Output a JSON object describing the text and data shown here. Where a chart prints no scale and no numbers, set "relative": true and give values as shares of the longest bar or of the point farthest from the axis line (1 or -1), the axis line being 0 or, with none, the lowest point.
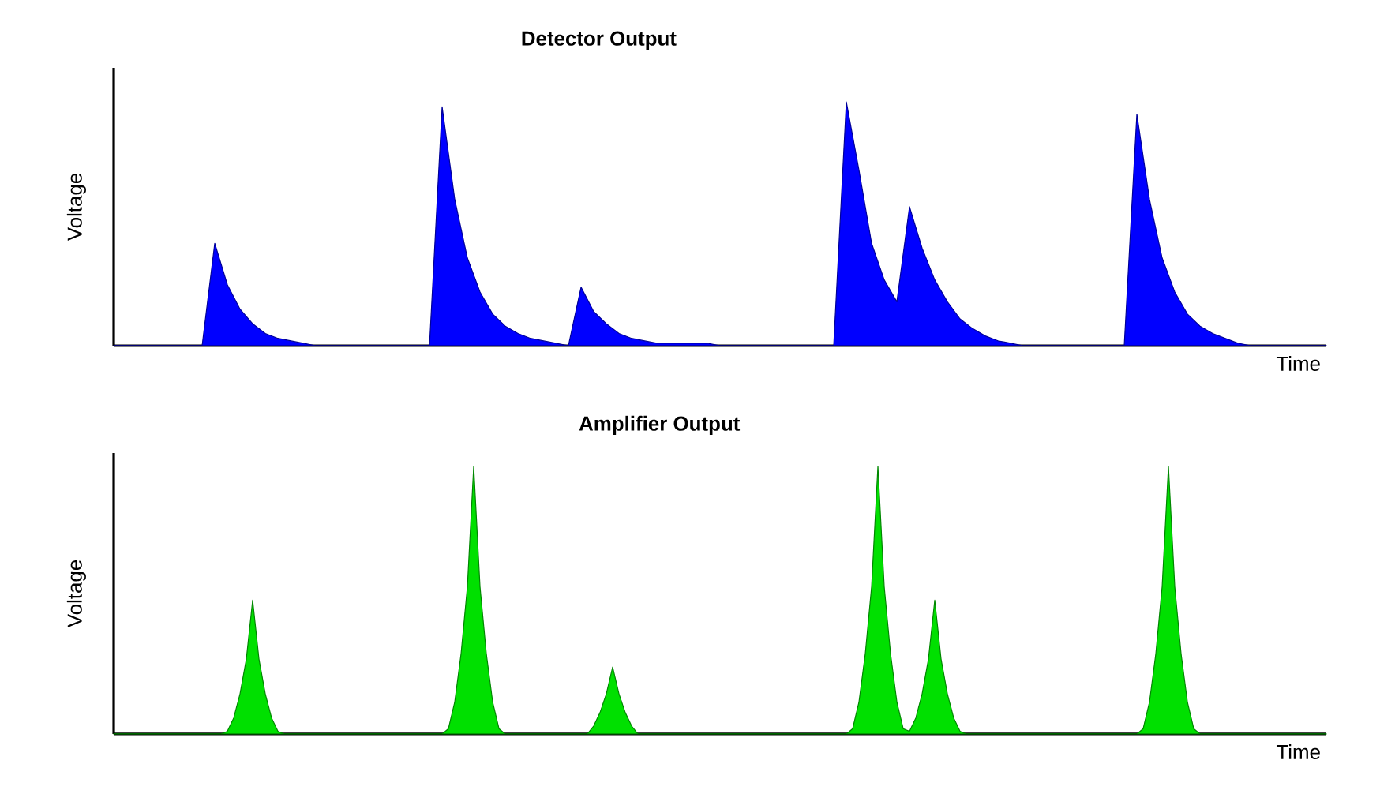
{
  "chart_data": [
    {
      "type": "area",
      "title": "Detector Output",
      "xlabel": "Time",
      "ylabel": "Voltage",
      "relative": true,
      "color": "#0000ff",
      "categories": [
        null,
        null,
        null,
        null,
        null,
        null,
        null,
        null,
        null,
        null,
        null,
        null,
        null,
        null,
        null,
        null,
        null,
        null,
        null,
        null,
        null,
        null,
        null,
        null,
        null,
        null,
        null,
        null,
        null,
        null,
        null,
        null,
        null,
        null,
        null,
        null,
        null,
        null,
        null,
        null,
        null,
        null,
        null,
        null,
        null,
        null,
        null,
        null,
        null,
        null,
        null,
        null,
        null,
        null,
        null,
        null,
        null,
        null,
        null,
        null,
        null,
        null,
        null,
        null,
        null,
        null,
        null,
        null,
        null,
        null,
        null,
        null,
        null,
        null,
        null,
        null,
        null,
        null,
        null,
        null,
        null,
        null,
        null,
        null,
        null,
        null,
        null,
        null,
        null,
        null,
        null,
        null,
        null,
        null,
        null,
        null,
        null
      ],
      "values": [
        0,
        0,
        0,
        0,
        0,
        0,
        0,
        0,
        0.42,
        0.25,
        0.15,
        0.09,
        0.05,
        0.03,
        0.02,
        0.01,
        0,
        0,
        0,
        0,
        0,
        0,
        0,
        0,
        0,
        0,
        0.98,
        0.6,
        0.36,
        0.22,
        0.13,
        0.08,
        0.05,
        0.03,
        0.02,
        0.01,
        0,
        0.24,
        0.14,
        0.09,
        0.05,
        0.03,
        0.02,
        0.01,
        0.01,
        0.01,
        0.01,
        0.01,
        0,
        0,
        0,
        0,
        0,
        0,
        0,
        0,
        0,
        0,
        1,
        0.72,
        0.42,
        0.27,
        0.18,
        0.57,
        0.4,
        0.27,
        0.18,
        0.11,
        0.07,
        0.04,
        0.02,
        0.01,
        0,
        0,
        0,
        0,
        0,
        0,
        0,
        0,
        0,
        0.95,
        0.6,
        0.36,
        0.22,
        0.13,
        0.08,
        0.05,
        0.03,
        0.01,
        0,
        0,
        0,
        0,
        0,
        0,
        0
      ]
    },
    {
      "type": "area",
      "title": "Amplifier Output",
      "xlabel": "Time",
      "ylabel": "Voltage",
      "relative": true,
      "color": "#00e000",
      "categories": [
        null,
        null,
        null,
        null,
        null,
        null,
        null,
        null,
        null,
        null,
        null,
        null,
        null,
        null,
        null,
        null,
        null,
        null,
        null,
        null,
        null,
        null,
        null,
        null,
        null,
        null,
        null,
        null,
        null,
        null,
        null,
        null,
        null,
        null,
        null,
        null,
        null,
        null,
        null,
        null,
        null,
        null,
        null,
        null,
        null,
        null,
        null,
        null,
        null,
        null,
        null,
        null,
        null,
        null,
        null,
        null,
        null,
        null,
        null,
        null,
        null,
        null,
        null,
        null,
        null,
        null,
        null,
        null,
        null,
        null,
        null,
        null,
        null,
        null,
        null,
        null,
        null,
        null,
        null,
        null,
        null,
        null,
        null,
        null,
        null,
        null,
        null,
        null,
        null,
        null,
        null,
        null,
        null,
        null,
        null,
        null,
        null,
        null,
        null,
        null,
        null,
        null,
        null,
        null,
        null,
        null,
        null,
        null,
        null,
        null,
        null,
        null,
        null,
        null,
        null,
        null,
        null,
        null,
        null,
        null,
        null,
        null,
        null,
        null,
        null,
        null,
        null,
        null,
        null,
        null,
        null,
        null,
        null,
        null,
        null,
        null,
        null,
        null,
        null,
        null,
        null,
        null,
        null,
        null,
        null,
        null,
        null,
        null,
        null,
        null,
        null,
        null,
        null,
        null,
        null,
        null,
        null,
        null,
        null,
        null,
        null,
        null,
        null,
        null,
        null,
        null,
        null,
        null,
        null,
        null,
        null,
        null,
        null,
        null,
        null,
        null,
        null,
        null,
        null,
        null,
        null,
        null,
        null,
        null,
        null,
        null,
        null,
        null,
        null,
        null,
        null,
        null,
        null
      ],
      "values": [
        0,
        0,
        0,
        0,
        0,
        0,
        0,
        0,
        0,
        0,
        0,
        0,
        0,
        0,
        0,
        0,
        0,
        0,
        0.01,
        0.06,
        0.15,
        0.28,
        0.5,
        0.28,
        0.15,
        0.06,
        0.01,
        0,
        0,
        0,
        0,
        0,
        0,
        0,
        0,
        0,
        0,
        0,
        0,
        0,
        0,
        0,
        0,
        0,
        0,
        0,
        0,
        0,
        0,
        0,
        0,
        0,
        0,
        0.02,
        0.12,
        0.3,
        0.55,
        1,
        0.55,
        0.3,
        0.12,
        0.02,
        0,
        0,
        0,
        0,
        0,
        0,
        0,
        0,
        0,
        0,
        0,
        0,
        0,
        0,
        0.03,
        0.08,
        0.15,
        0.25,
        0.15,
        0.08,
        0.03,
        0,
        0,
        0,
        0,
        0,
        0,
        0,
        0,
        0,
        0,
        0,
        0,
        0,
        0,
        0,
        0,
        0,
        0,
        0,
        0,
        0,
        0,
        0,
        0,
        0,
        0,
        0,
        0,
        0,
        0,
        0,
        0,
        0,
        0,
        0.02,
        0.12,
        0.3,
        0.55,
        1,
        0.55,
        0.3,
        0.12,
        0.02,
        0.01,
        0.06,
        0.15,
        0.28,
        0.5,
        0.28,
        0.15,
        0.06,
        0.01,
        0,
        0,
        0,
        0,
        0,
        0,
        0,
        0,
        0,
        0,
        0,
        0,
        0,
        0,
        0,
        0,
        0,
        0,
        0,
        0,
        0,
        0,
        0,
        0,
        0,
        0,
        0,
        0,
        0.02,
        0.12,
        0.3,
        0.55,
        1,
        0.55,
        0.3,
        0.12,
        0.02,
        0,
        0,
        0,
        0,
        0,
        0,
        0,
        0,
        0,
        0,
        0,
        0,
        0,
        0,
        0,
        0,
        0,
        0,
        0,
        0,
        0
      ]
    }
  ]
}
